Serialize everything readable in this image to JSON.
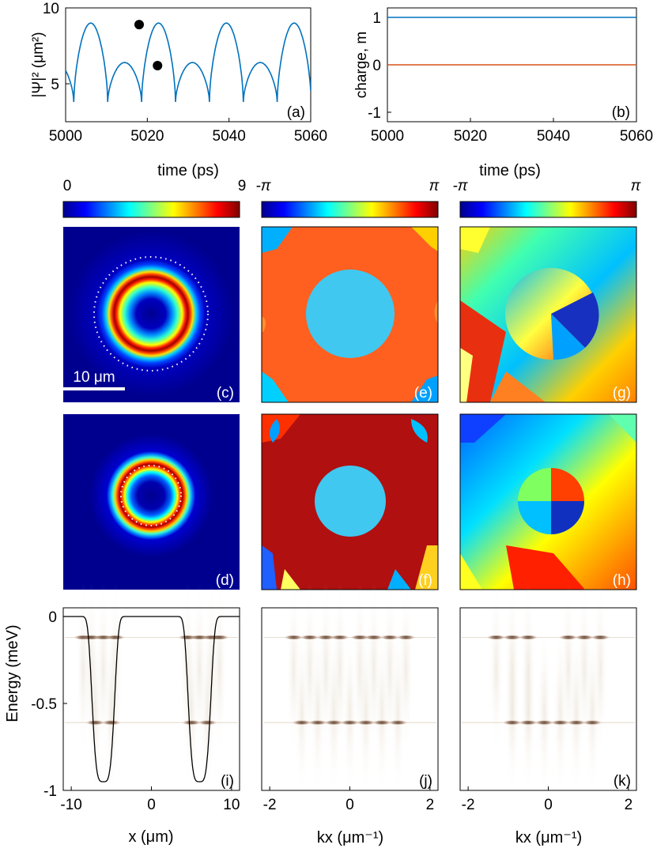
{
  "figure": {
    "panel_labels": [
      "(a)",
      "(b)",
      "(c)",
      "(d)",
      "(e)",
      "(f)",
      "(g)",
      "(h)",
      "(i)",
      "(j)",
      "(k)"
    ],
    "scale_bar": "10 μm",
    "colorbars": [
      {
        "min_label": "0",
        "max_label": "9"
      },
      {
        "min_label": "-π",
        "max_label": "π"
      },
      {
        "min_label": "-π",
        "max_label": "π"
      }
    ],
    "colors": {
      "blue_line": "#0072BD",
      "orange_line": "#D95319",
      "jet_low": "#00008f",
      "jet_high": "#800000"
    }
  },
  "chart_data": [
    {
      "type": "line",
      "panel": "(a)",
      "xlabel": "time (ps)",
      "ylabel": "|Ψ|² (μm²)",
      "xlim": [
        5000,
        5060
      ],
      "ylim": [
        2.5,
        10
      ],
      "xticks": [
        "5000",
        "5020",
        "5040",
        "5060"
      ],
      "yticks": [
        "5",
        "10"
      ],
      "period": 8.3,
      "series": [
        {
          "color": "#0072BD",
          "values_max": 9.0,
          "values_min": 3.8,
          "secondary_peak": 6.4
        }
      ],
      "markers": [
        {
          "x": 5018,
          "y": 8.9
        },
        {
          "x": 5022.5,
          "y": 6.2
        }
      ]
    },
    {
      "type": "line",
      "panel": "(b)",
      "xlabel": "time (ps)",
      "ylabel": "charge, m",
      "xlim": [
        5000,
        5060
      ],
      "ylim": [
        -1.2,
        1.2
      ],
      "xticks": [
        "5000",
        "5020",
        "5040",
        "5060"
      ],
      "yticks": [
        "-1",
        "0",
        "1"
      ],
      "series": [
        {
          "color": "#0072BD",
          "x": [
            5000,
            5060
          ],
          "y": [
            1,
            1
          ]
        },
        {
          "color": "#D95319",
          "x": [
            5000,
            5060
          ],
          "y": [
            0,
            0
          ]
        }
      ]
    },
    {
      "type": "heatmap",
      "panel": "(i)",
      "xlabel": "x (μm)",
      "ylabel": "Energy (meV)",
      "xlim": [
        -11,
        11
      ],
      "ylim": [
        -1,
        0.05
      ],
      "xticks": [
        "-10",
        "0",
        "10"
      ],
      "yticks": [
        "-1",
        "-0.5",
        "0"
      ],
      "bands": [
        {
          "energy": -0.12,
          "x": [
            -8.5,
            -7.5,
            -6,
            -4.5,
            4.5,
            6,
            7.5,
            8.5
          ]
        },
        {
          "energy": -0.61,
          "x": [
            -7,
            -5,
            5,
            7
          ]
        }
      ]
    },
    {
      "type": "heatmap",
      "panel": "(j)",
      "xlabel": "kx (μm⁻¹)",
      "xlim": [
        -2.2,
        2.2
      ],
      "ylim": [
        -1,
        0.05
      ],
      "xticks": [
        "-2",
        "0",
        "2"
      ],
      "bands": [
        {
          "energy": -0.12,
          "x": [
            -1.4,
            -1.0,
            -0.6,
            -0.25,
            0.25,
            0.6,
            1.0,
            1.4
          ]
        },
        {
          "energy": -0.61,
          "x": [
            -1.2,
            -0.8,
            -0.4,
            0,
            0.4,
            0.8,
            1.2
          ]
        }
      ]
    },
    {
      "type": "heatmap",
      "panel": "(k)",
      "xlabel": "kx (μm⁻¹)",
      "xlim": [
        -2.2,
        2.2
      ],
      "ylim": [
        -1,
        0.05
      ],
      "xticks": [
        "-2",
        "0",
        "2"
      ],
      "bands": [
        {
          "energy": -0.12,
          "x": [
            -1.3,
            -0.9,
            -0.5,
            0.5,
            0.9,
            1.3
          ]
        },
        {
          "energy": -0.61,
          "x": [
            -0.9,
            -0.5,
            -0.1,
            0.3,
            0.7,
            1.1
          ]
        }
      ]
    }
  ]
}
